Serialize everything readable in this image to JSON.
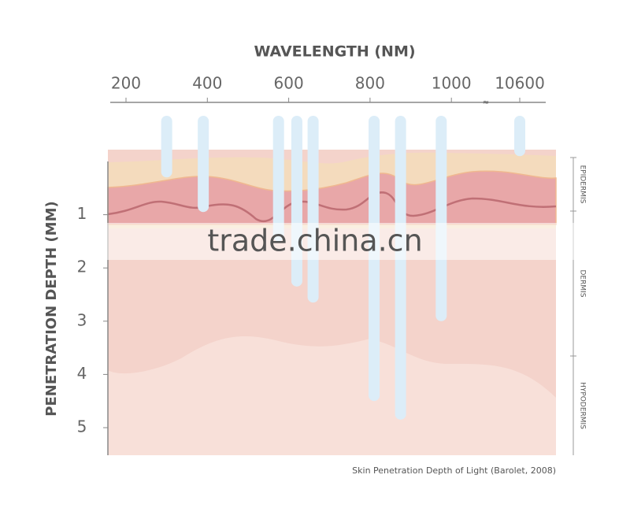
{
  "chart_data": {
    "type": "bar",
    "title": "WAVELENGTH (NM)",
    "y_label": "PENETRATION DEPTH (MM)",
    "caption": "Skin Penetration Depth of Light (Barolet, 2008)",
    "watermark": "trade.china.cn",
    "layers": [
      "EPIDERMIS",
      "DERMIS",
      "HYPODERMIS"
    ],
    "x": [
      300,
      390,
      575,
      620,
      660,
      810,
      875,
      975,
      10600
    ],
    "values": [
      0.3,
      0.95,
      1.5,
      2.35,
      2.65,
      4.5,
      4.85,
      3.0,
      -0.1
    ],
    "color": "#dcedf8",
    "xticks": [
      200,
      400,
      600,
      800,
      1000,
      10600
    ],
    "axis_break": [
      1000,
      10600
    ],
    "ylim": [
      0,
      5.5
    ],
    "yticks": [
      1,
      2,
      3,
      4,
      5
    ],
    "y_inverted": true
  }
}
